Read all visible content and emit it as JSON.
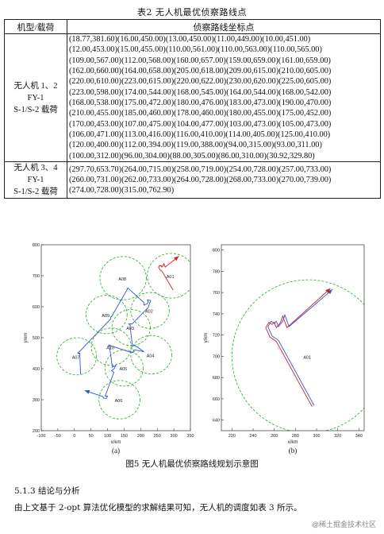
{
  "table": {
    "caption": "表2 无人机最优侦察路线点",
    "headers": [
      "机型/载荷",
      "侦察路线坐标点"
    ],
    "rows": [
      {
        "model_lines": [
          "无人机 1、2",
          "FY-1",
          "S-1/S-2 载荷"
        ],
        "coord_lines": [
          "(18.77,381.60)(16.00,450.00)(13.00,450.00)(11.00,449.00)(10.00,451.00)",
          "(12.00,453.00)(15.00,455.00)(110.00,561.00)(110.00,563.00)(110.00,565.00)",
          "(109.00,567.00)(112.00,568.00)(160.00,657.00)(159.00,659.00)(161.00,659.00)",
          "(162.00,660.00)(164.00,658.00)(205.00,618.00)(209.00,615.00)(210.00,605.00)",
          "(220.00,610.00)(223.00,615.00)(220.00,622.00)(230.00,620.00)(225.00,605.00)",
          "(223.00,598.00)(174.00,544.00)(168.00,545.00)(164.00,544.00)(168.00,542.00)",
          "(168.00,538.00)(175.00,472.00)(180.00,476.00)(183.00,473.00)(190.00,470.00)",
          "(210.00,455.00)(185.00,460.00)(178.00,460.00)(180.00,455.00)(175.00,452.00)",
          "(170.00,453.00)(107.00,475.00)(104.00,477.00)(103.00,473.00)(105.00,473.00)",
          "(106.00,471.00)(113.00,416.00)(116.00,410.00)(114.00,405.00)(125.00,410.00)",
          "(120.00,400.00)(112.00,394.00)(119.00,388.00)(94.00,315.00)(93.00,311.00)",
          "(100.00,312.00)(96.00,304.00)(88.00,305.00)(86.00,310.00)(30.92,329.80)"
        ]
      },
      {
        "model_lines": [
          "无人机 3、4",
          "FY-1",
          "S-1/S-2 载荷"
        ],
        "coord_lines": [
          "(297.70,653.70)(264.00,715.00)(258.00,719.00)(254.00,728.00)(257.00,733.00)",
          "(260.00,731.00)(262.00,733.00)(264.00,728.00)(268.00,733.00)(270.00,739.00)",
          "(274.00,728.00)(315.00,762.90)"
        ]
      }
    ]
  },
  "figure": {
    "caption": "图5 无人机最优侦察路线规划示意图",
    "colors": {
      "circle": "#22aa22",
      "route_blue": "#3355cc",
      "route_red": "#cc2222",
      "route_gray": "#888888"
    },
    "chart_data": [
      {
        "type": "line",
        "panel_label": "(a)",
        "xlabel": "x/km",
        "ylabel": "y/km",
        "xlim": [
          -100,
          350
        ],
        "ylim": [
          200,
          800
        ],
        "xticks": [
          "-100",
          "-50",
          "0",
          "50",
          "100",
          "150",
          "200",
          "250",
          "300",
          "350"
        ],
        "yticks": [
          "200",
          "300",
          "400",
          "500",
          "600",
          "700",
          "800"
        ],
        "grid": false,
        "targets": [
          {
            "name": "A01",
            "x": 292,
            "y": 700,
            "r": 72
          },
          {
            "name": "A02",
            "x": 228,
            "y": 588,
            "r": 58
          },
          {
            "name": "A03",
            "x": 171,
            "y": 533,
            "r": 58
          },
          {
            "name": "A04",
            "x": 232,
            "y": 445,
            "r": 62
          },
          {
            "name": "A05",
            "x": 150,
            "y": 402,
            "r": 58
          },
          {
            "name": "A06",
            "x": 136,
            "y": 300,
            "r": 62
          },
          {
            "name": "A07",
            "x": 7,
            "y": 440,
            "r": 60
          },
          {
            "name": "A08",
            "x": 147,
            "y": 692,
            "r": 70
          },
          {
            "name": "A09",
            "x": 97,
            "y": 575,
            "r": 62
          },
          {
            "name": "A10",
            "x": 111,
            "y": 471,
            "r": 60
          }
        ],
        "series": [
          {
            "name": "",
            "color": "#3355cc",
            "points": [
              [
                18.77,
                381.6
              ],
              [
                16,
                450
              ],
              [
                13,
                450
              ],
              [
                11,
                449
              ],
              [
                10,
                451
              ],
              [
                12,
                453
              ],
              [
                15,
                455
              ],
              [
                110,
                561
              ],
              [
                110,
                563
              ],
              [
                110,
                565
              ],
              [
                109,
                567
              ],
              [
                112,
                568
              ],
              [
                160,
                657
              ],
              [
                159,
                659
              ],
              [
                161,
                659
              ],
              [
                162,
                660
              ],
              [
                164,
                658
              ],
              [
                205,
                618
              ],
              [
                209,
                615
              ],
              [
                210,
                605
              ],
              [
                220,
                610
              ],
              [
                223,
                615
              ],
              [
                220,
                622
              ],
              [
                230,
                620
              ],
              [
                225,
                605
              ],
              [
                223,
                598
              ],
              [
                174,
                544
              ],
              [
                168,
                545
              ],
              [
                164,
                544
              ],
              [
                168,
                542
              ],
              [
                168,
                538
              ],
              [
                175,
                472
              ],
              [
                180,
                476
              ],
              [
                183,
                473
              ],
              [
                190,
                470
              ],
              [
                210,
                455
              ],
              [
                185,
                460
              ],
              [
                178,
                460
              ],
              [
                180,
                455
              ],
              [
                175,
                452
              ],
              [
                170,
                453
              ],
              [
                107,
                475
              ],
              [
                104,
                477
              ],
              [
                103,
                473
              ],
              [
                105,
                473
              ],
              [
                106,
                471
              ],
              [
                113,
                416
              ],
              [
                116,
                410
              ],
              [
                114,
                405
              ],
              [
                125,
                410
              ],
              [
                120,
                400
              ],
              [
                112,
                394
              ],
              [
                119,
                388
              ],
              [
                94,
                315
              ],
              [
                93,
                311
              ],
              [
                100,
                312
              ],
              [
                96,
                304
              ],
              [
                88,
                305
              ],
              [
                86,
                310
              ],
              [
                30.92,
                329.8
              ]
            ]
          },
          {
            "name": "",
            "color": "#cc2222",
            "points": [
              [
                297.7,
                653.7
              ],
              [
                264,
                715
              ],
              [
                258,
                719
              ],
              [
                254,
                728
              ],
              [
                257,
                733
              ],
              [
                260,
                731
              ],
              [
                262,
                733
              ],
              [
                264,
                728
              ],
              [
                268,
                733
              ],
              [
                270,
                739
              ],
              [
                274,
                728
              ],
              [
                315,
                762.9
              ]
            ]
          }
        ]
      },
      {
        "type": "line",
        "panel_label": "(b)",
        "xlabel": "x/km",
        "ylabel": "y/km",
        "xlim": [
          210,
          345
        ],
        "ylim": [
          630,
          805
        ],
        "xticks": [
          "220",
          "240",
          "260",
          "280",
          "300",
          "320",
          "340"
        ],
        "yticks": [
          "640",
          "660",
          "680",
          "700",
          "720",
          "740",
          "760",
          "780",
          "800"
        ],
        "grid": false,
        "targets": [
          {
            "name": "A01",
            "x": 292,
            "y": 700,
            "r": 72
          }
        ],
        "series": [
          {
            "name": "",
            "color": "#3355cc",
            "points": [
              [
                297.7,
                653.7
              ],
              [
                264,
                715
              ],
              [
                258,
                719
              ],
              [
                254,
                728
              ],
              [
                257,
                733
              ],
              [
                260,
                731
              ],
              [
                262,
                733
              ],
              [
                264,
                728
              ],
              [
                268,
                733
              ],
              [
                270,
                739
              ],
              [
                274,
                728
              ],
              [
                315,
                762.9
              ]
            ]
          },
          {
            "name": "",
            "color": "#cc2222",
            "points": [
              [
                295.7,
                652.7
              ],
              [
                262,
                714
              ],
              [
                256,
                718
              ],
              [
                252,
                727
              ],
              [
                255,
                732
              ],
              [
                258,
                730
              ],
              [
                260,
                732
              ],
              [
                262,
                727
              ],
              [
                266,
                732
              ],
              [
                268,
                738
              ],
              [
                272,
                727
              ],
              [
                313,
                763.9
              ]
            ]
          }
        ]
      }
    ]
  },
  "section": {
    "heading": "5.1.3 结论与分析",
    "paragraph": "由上文基于 2-opt 算法优化模型的求解结果可知，无人机的调度如表 3 所示。"
  },
  "watermark": "@稀土掘金技术社区"
}
